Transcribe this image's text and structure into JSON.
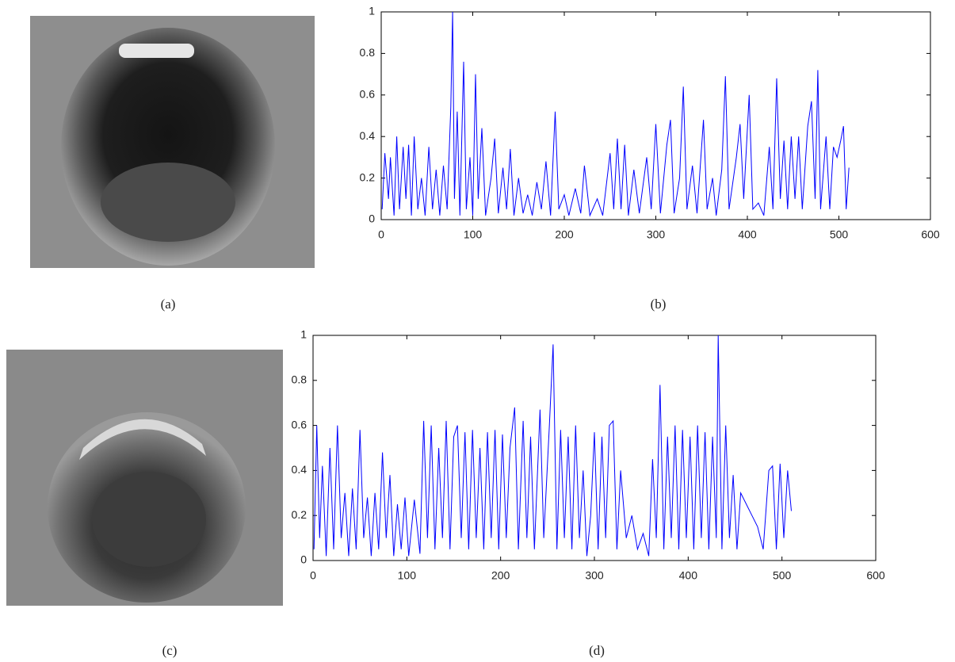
{
  "images": [
    {
      "caption": "(a)"
    },
    {
      "caption": "(c)"
    }
  ],
  "chart_data": [
    {
      "type": "line",
      "caption": "(b)",
      "color": "#0000ff",
      "xlim": [
        0,
        600
      ],
      "ylim": [
        0,
        1
      ],
      "xticks": [
        0,
        100,
        200,
        300,
        400,
        500,
        600
      ],
      "yticks": [
        0,
        0.2,
        0.4,
        0.6,
        0.8,
        1
      ],
      "x": [
        1,
        4,
        8,
        10,
        14,
        17,
        20,
        24,
        27,
        30,
        33,
        36,
        40,
        44,
        48,
        52,
        56,
        60,
        64,
        68,
        72,
        76,
        78,
        80,
        83,
        86,
        90,
        93,
        97,
        100,
        103,
        106,
        110,
        114,
        120,
        124,
        128,
        133,
        137,
        141,
        145,
        150,
        155,
        160,
        165,
        170,
        175,
        180,
        185,
        190,
        194,
        200,
        205,
        212,
        218,
        222,
        228,
        236,
        242,
        250,
        254,
        258,
        262,
        266,
        270,
        276,
        282,
        290,
        295,
        300,
        305,
        312,
        316,
        320,
        326,
        330,
        334,
        340,
        345,
        352,
        356,
        362,
        366,
        372,
        376,
        380,
        388,
        392,
        396,
        402,
        406,
        412,
        418,
        424,
        428,
        432,
        436,
        440,
        444,
        448,
        452,
        456,
        460,
        466,
        470,
        474,
        477,
        480,
        486,
        490,
        494,
        498,
        502,
        505,
        508,
        511
      ],
      "values": [
        0.05,
        0.32,
        0.1,
        0.3,
        0.02,
        0.4,
        0.05,
        0.35,
        0.1,
        0.36,
        0.02,
        0.4,
        0.05,
        0.2,
        0.02,
        0.35,
        0.05,
        0.24,
        0.02,
        0.26,
        0.05,
        0.54,
        1,
        0.1,
        0.52,
        0.02,
        0.76,
        0.05,
        0.3,
        0.02,
        0.7,
        0.1,
        0.44,
        0.02,
        0.2,
        0.39,
        0.03,
        0.25,
        0.05,
        0.34,
        0.02,
        0.2,
        0.03,
        0.12,
        0.02,
        0.18,
        0.05,
        0.28,
        0.02,
        0.52,
        0.05,
        0.12,
        0.02,
        0.15,
        0.03,
        0.26,
        0.02,
        0.1,
        0.02,
        0.32,
        0.05,
        0.39,
        0.05,
        0.36,
        0.02,
        0.24,
        0.03,
        0.3,
        0.05,
        0.46,
        0.03,
        0.36,
        0.48,
        0.03,
        0.2,
        0.64,
        0.05,
        0.26,
        0.03,
        0.48,
        0.05,
        0.2,
        0.02,
        0.24,
        0.69,
        0.05,
        0.3,
        0.46,
        0.1,
        0.6,
        0.05,
        0.08,
        0.02,
        0.35,
        0.05,
        0.68,
        0.1,
        0.38,
        0.05,
        0.4,
        0.1,
        0.4,
        0.05,
        0.45,
        0.57,
        0.1,
        0.72,
        0.05,
        0.4,
        0.05,
        0.35,
        0.3,
        0.38,
        0.45,
        0.05,
        0.25
      ]
    },
    {
      "type": "line",
      "caption": "(d)",
      "color": "#0000ff",
      "xlim": [
        0,
        600
      ],
      "ylim": [
        0,
        1
      ],
      "xticks": [
        0,
        100,
        200,
        300,
        400,
        500,
        600
      ],
      "yticks": [
        0,
        0.2,
        0.4,
        0.6,
        0.8,
        1
      ],
      "x": [
        1,
        4,
        7,
        10,
        14,
        18,
        22,
        26,
        30,
        34,
        38,
        42,
        46,
        50,
        54,
        58,
        62,
        66,
        70,
        74,
        78,
        82,
        86,
        90,
        94,
        98,
        102,
        108,
        114,
        118,
        122,
        126,
        130,
        134,
        138,
        142,
        146,
        150,
        154,
        158,
        162,
        166,
        170,
        174,
        178,
        182,
        186,
        190,
        194,
        198,
        202,
        206,
        210,
        215,
        219,
        224,
        228,
        232,
        236,
        242,
        246,
        252,
        256,
        260,
        264,
        268,
        272,
        276,
        280,
        284,
        288,
        292,
        296,
        300,
        304,
        308,
        312,
        316,
        320,
        324,
        328,
        334,
        340,
        346,
        352,
        358,
        362,
        366,
        370,
        374,
        378,
        382,
        386,
        390,
        394,
        398,
        402,
        406,
        410,
        414,
        418,
        422,
        426,
        430,
        432,
        436,
        440,
        444,
        448,
        452,
        456,
        462,
        468,
        474,
        480,
        486,
        490,
        494,
        498,
        502,
        506,
        510
      ],
      "values": [
        0.05,
        0.6,
        0.1,
        0.42,
        0.02,
        0.5,
        0.05,
        0.6,
        0.1,
        0.3,
        0.02,
        0.32,
        0.05,
        0.58,
        0.1,
        0.28,
        0.02,
        0.3,
        0.05,
        0.48,
        0.1,
        0.38,
        0.02,
        0.25,
        0.05,
        0.28,
        0.02,
        0.27,
        0.03,
        0.62,
        0.1,
        0.6,
        0.05,
        0.5,
        0.1,
        0.62,
        0.05,
        0.55,
        0.6,
        0.1,
        0.57,
        0.05,
        0.58,
        0.1,
        0.5,
        0.05,
        0.57,
        0.1,
        0.58,
        0.05,
        0.56,
        0.1,
        0.5,
        0.68,
        0.05,
        0.62,
        0.1,
        0.55,
        0.05,
        0.67,
        0.1,
        0.6,
        0.96,
        0.05,
        0.58,
        0.1,
        0.55,
        0.05,
        0.6,
        0.1,
        0.4,
        0.02,
        0.2,
        0.57,
        0.05,
        0.55,
        0.1,
        0.6,
        0.62,
        0.05,
        0.4,
        0.1,
        0.2,
        0.05,
        0.12,
        0.02,
        0.45,
        0.1,
        0.78,
        0.05,
        0.55,
        0.1,
        0.6,
        0.05,
        0.58,
        0.1,
        0.55,
        0.05,
        0.6,
        0.1,
        0.57,
        0.05,
        0.55,
        0.1,
        1,
        0.05,
        0.6,
        0.1,
        0.38,
        0.05,
        0.3,
        0.25,
        0.2,
        0.15,
        0.05,
        0.4,
        0.42,
        0.05,
        0.43,
        0.1,
        0.4,
        0.22
      ]
    }
  ]
}
